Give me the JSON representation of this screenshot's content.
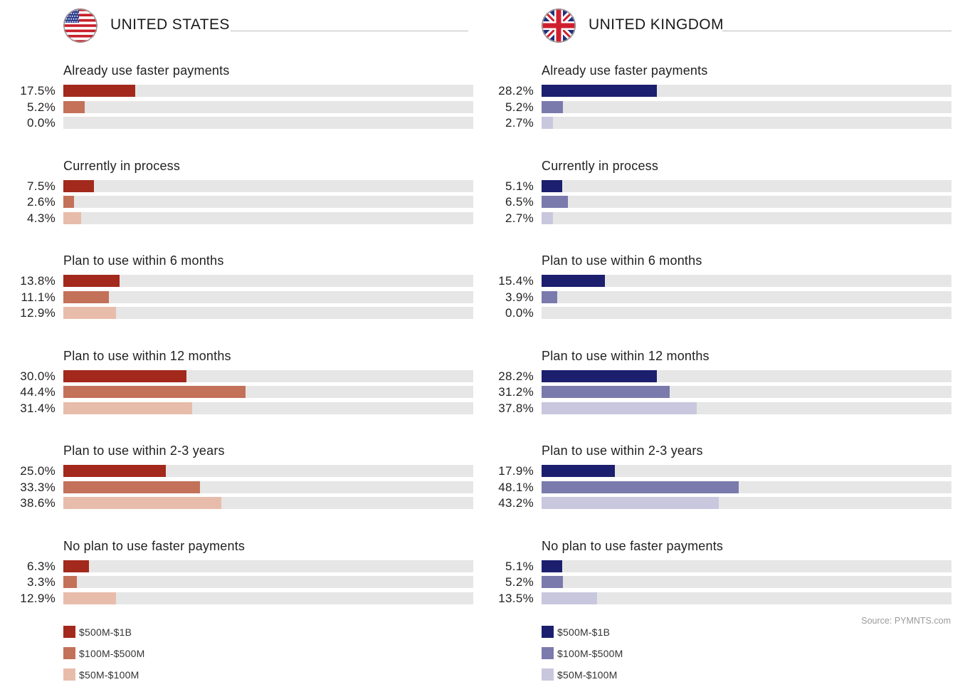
{
  "chart_data": [
    {
      "type": "bar",
      "orientation": "horizontal",
      "title": "UNITED STATES",
      "flag": "us-flag-icon",
      "categories": [
        "Already use faster payments",
        "Currently in process",
        "Plan to use within 6 months",
        "Plan to use within 12 months",
        "Plan to use within 2-3 years",
        "No plan to use faster payments"
      ],
      "series": [
        {
          "name": "$500M-$1B",
          "color": "#a3291c",
          "values": [
            17.5,
            7.5,
            13.8,
            30.0,
            25.0,
            6.3
          ],
          "labels": [
            "17.5%",
            "7.5%",
            "13.8%",
            "30.0%",
            "25.0%",
            "6.3%"
          ]
        },
        {
          "name": "$100M-$500M",
          "color": "#c4715a",
          "values": [
            5.2,
            2.6,
            11.1,
            44.4,
            33.3,
            3.3
          ],
          "labels": [
            "5.2%",
            "2.6%",
            "11.1%",
            "44.4%",
            "33.3%",
            "3.3%"
          ]
        },
        {
          "name": "$50M-$100M",
          "color": "#e8bcab",
          "values": [
            0.0,
            4.3,
            12.9,
            31.4,
            38.6,
            12.9
          ],
          "labels": [
            "0.0%",
            "4.3%",
            "12.9%",
            "31.4%",
            "38.6%",
            "12.9%"
          ]
        }
      ],
      "xlim": [
        0,
        100
      ],
      "track_color": "#e6e6e6"
    },
    {
      "type": "bar",
      "orientation": "horizontal",
      "title": "UNITED KINGDOM",
      "flag": "uk-flag-icon",
      "categories": [
        "Already use faster payments",
        "Currently in process",
        "Plan to use within 6 months",
        "Plan to use within 12 months",
        "Plan to use within 2-3 years",
        "No plan to use faster payments"
      ],
      "series": [
        {
          "name": "$500M-$1B",
          "color": "#1c1f6e",
          "values": [
            28.2,
            5.1,
            15.4,
            28.2,
            17.9,
            5.1
          ],
          "labels": [
            "28.2%",
            "5.1%",
            "15.4%",
            "28.2%",
            "17.9%",
            "5.1%"
          ]
        },
        {
          "name": "$100M-$500M",
          "color": "#7b7aad",
          "values": [
            5.2,
            6.5,
            3.9,
            31.2,
            48.1,
            5.2
          ],
          "labels": [
            "5.2%",
            "6.5%",
            "3.9%",
            "31.2%",
            "48.1%",
            "5.2%"
          ]
        },
        {
          "name": "$50M-$100M",
          "color": "#c8c7de",
          "values": [
            2.7,
            2.7,
            0.0,
            37.8,
            43.2,
            13.5
          ],
          "labels": [
            "2.7%",
            "2.7%",
            "0.0%",
            "37.8%",
            "43.2%",
            "13.5%"
          ]
        }
      ],
      "xlim": [
        0,
        100
      ],
      "track_color": "#e6e6e6"
    }
  ],
  "source": "Source: PYMNTS.com"
}
